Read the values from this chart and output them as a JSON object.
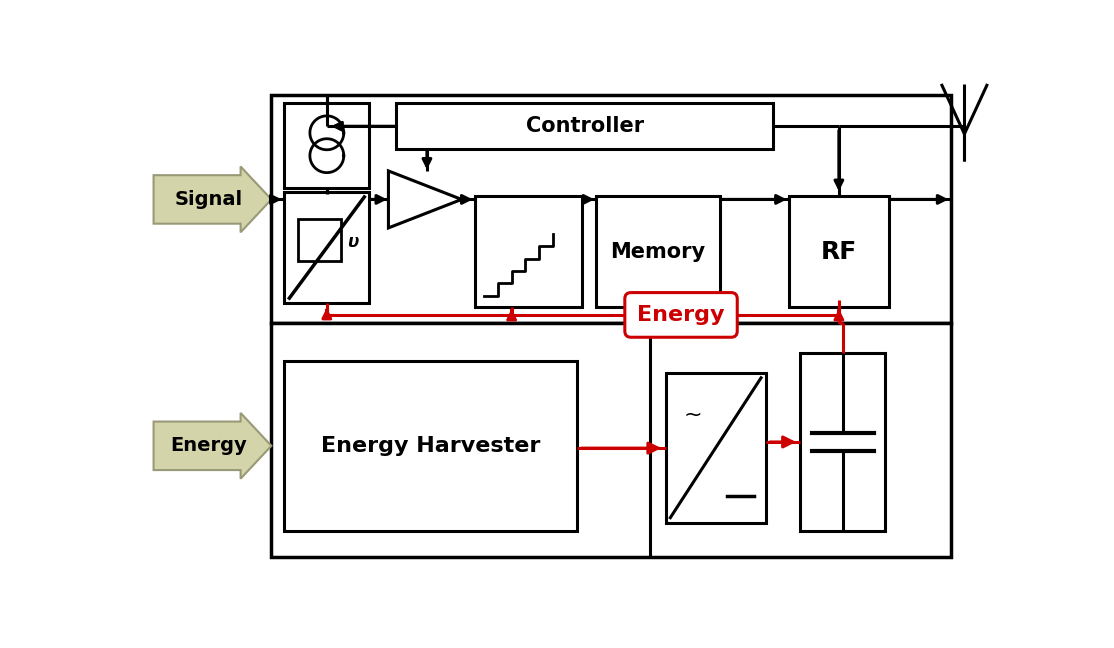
{
  "bg_color": "#ffffff",
  "black": "#000000",
  "red": "#cc0000",
  "gray_arrow_face": "#d4d4aa",
  "gray_arrow_edge": "#999977",
  "signal_label": "Signal",
  "energy_label": "Energy",
  "controller_label": "Controller",
  "memory_label": "Memory",
  "rf_label": "RF",
  "energy_harvester_label": "Energy Harvester",
  "energy_bubble_label": "Energy"
}
